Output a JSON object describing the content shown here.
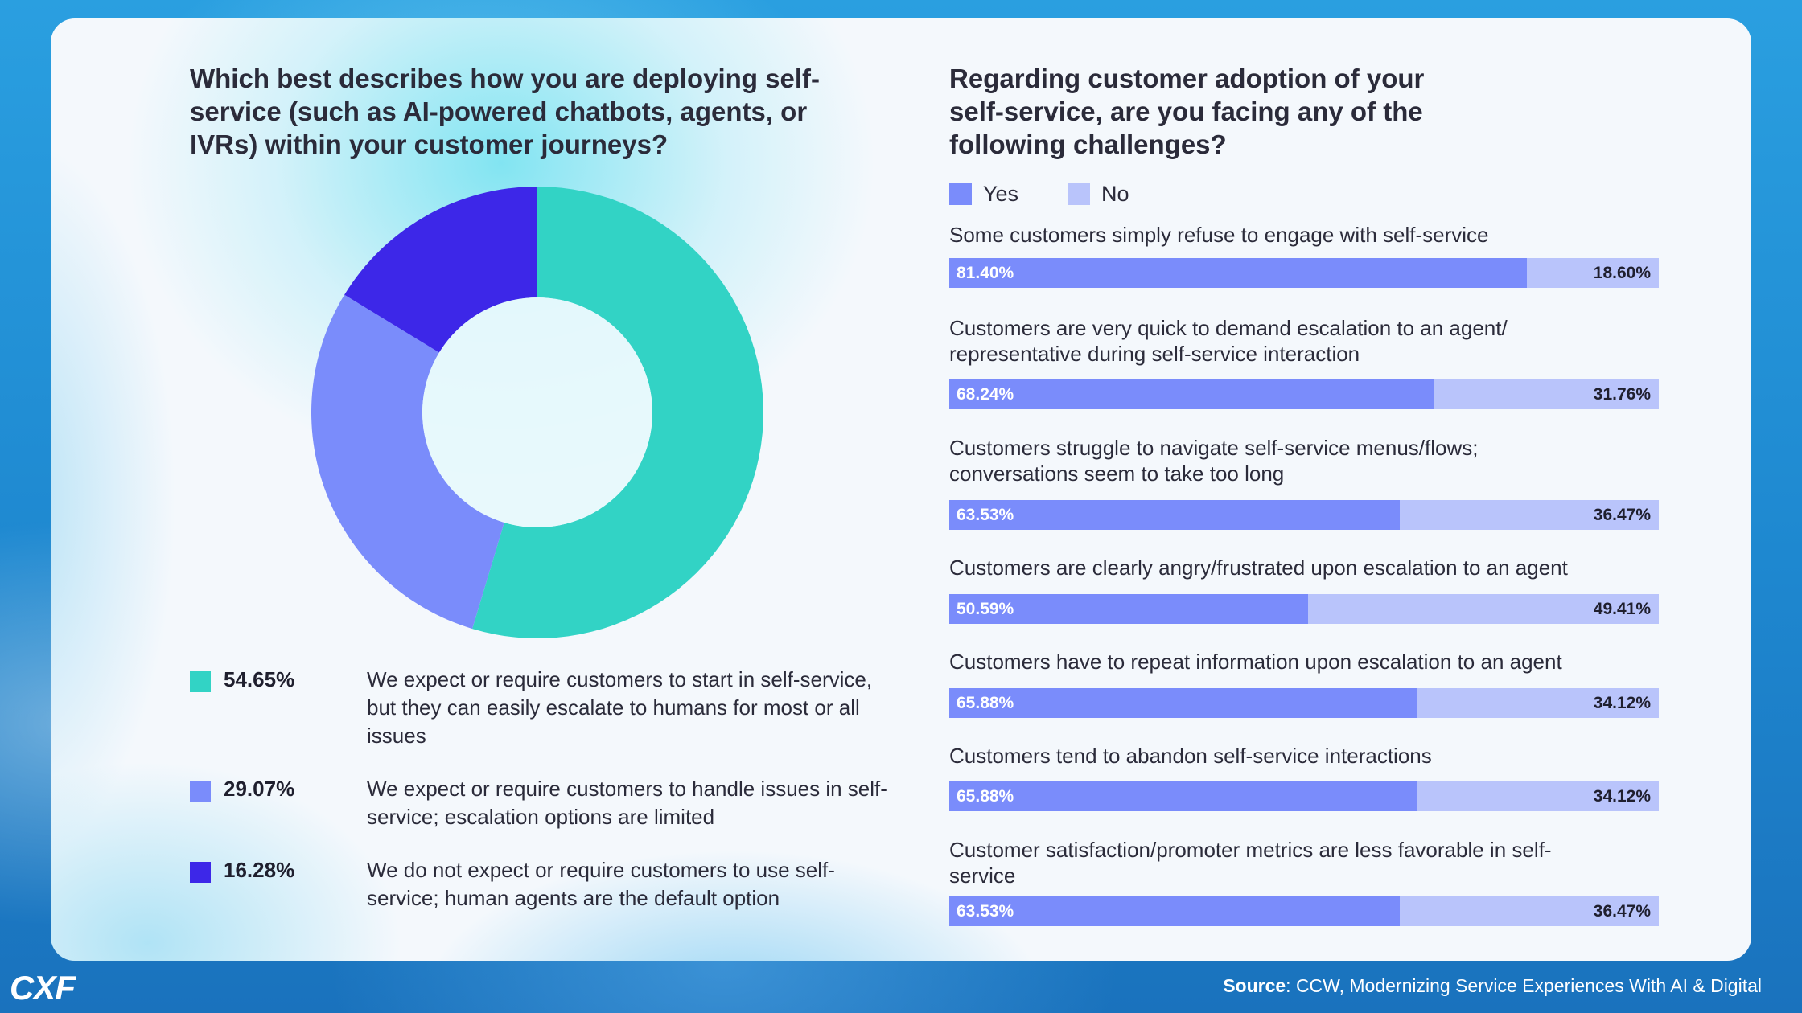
{
  "left_chart": {
    "title": "Which best describes how you are deploying self-service (such as AI-powered chatbots, agents, or IVRs) within your customer journeys?",
    "legend": [
      {
        "pct": "54.65%",
        "text": "We expect or require customers to start in self-service, but they can easily escalate to humans for most or all issues"
      },
      {
        "pct": "29.07%",
        "text": "We expect or require customers to handle issues in self-service; escalation options are limited"
      },
      {
        "pct": "16.28%",
        "text": "We do not expect or require customers to use self-service; human agents are the default option"
      }
    ]
  },
  "right_chart": {
    "title": "Regarding customer adoption of your self-service, are you facing any of the following challenges?",
    "legend": {
      "yes": "Yes",
      "no": "No"
    },
    "items": [
      {
        "label": "Some customers simply refuse to engage with self-service",
        "yes": "81.40%",
        "no": "18.60%"
      },
      {
        "label": "Customers are very quick to demand escalation to an agent/ representative during self-service interaction",
        "yes": "68.24%",
        "no": "31.76%"
      },
      {
        "label": "Customers struggle to navigate self-service menus/flows; conversations seem to take too long",
        "yes": "63.53%",
        "no": "36.47%"
      },
      {
        "label": "Customers are clearly angry/frustrated upon escalation to an agent",
        "yes": "50.59%",
        "no": "49.41%"
      },
      {
        "label": "Customers have to repeat information upon escalation to an agent",
        "yes": "65.88%",
        "no": "34.12%"
      },
      {
        "label": "Customers tend to abandon self-service interactions",
        "yes": "65.88%",
        "no": "34.12%"
      },
      {
        "label": "Customer satisfaction/promoter metrics are less favorable in self-service",
        "yes": "63.53%",
        "no": "36.47%"
      }
    ]
  },
  "chart_data": [
    {
      "type": "pie",
      "style": "donut",
      "title": "Which best describes how you are deploying self-service (such as AI-powered chatbots, agents, or IVRs) within your customer journeys?",
      "categories": [
        "We expect or require customers to start in self-service, but they can easily escalate to humans for most or all issues",
        "We expect or require customers to handle issues in self-service; escalation options are limited",
        "We do not expect or require customers to use self-service; human agents are the default option"
      ],
      "values": [
        54.65,
        29.07,
        16.28
      ],
      "colors": [
        "#32d3c5",
        "#7a8cfb",
        "#3d27e8"
      ],
      "legend": "bottom"
    },
    {
      "type": "bar",
      "orientation": "horizontal",
      "stacked": true,
      "title": "Regarding customer adoption of your self-service, are you facing any of the following challenges?",
      "categories": [
        "Some customers simply refuse to engage with self-service",
        "Customers are very quick to demand escalation to an agent/ representative during self-service interaction",
        "Customers struggle to navigate self-service menus/flows; conversations seem to take too long",
        "Customers are clearly angry/frustrated upon escalation to an agent",
        "Customers have to repeat information upon escalation to an agent",
        "Customers tend to abandon self-service interactions",
        "Customer satisfaction/promoter metrics are less favorable in self-service"
      ],
      "series": [
        {
          "name": "Yes",
          "values": [
            81.4,
            68.24,
            63.53,
            50.59,
            65.88,
            65.88,
            63.53
          ],
          "color": "#7a8cfb"
        },
        {
          "name": "No",
          "values": [
            18.6,
            31.76,
            36.47,
            49.41,
            34.12,
            34.12,
            36.47
          ],
          "color": "#b9c4fb"
        }
      ],
      "xlim": [
        0,
        100
      ],
      "legend": "top-left"
    }
  ],
  "footer": {
    "brand": "CXF",
    "source_label": "Source",
    "source_text": ": CCW, Modernizing Service Experiences With AI & Digital"
  }
}
